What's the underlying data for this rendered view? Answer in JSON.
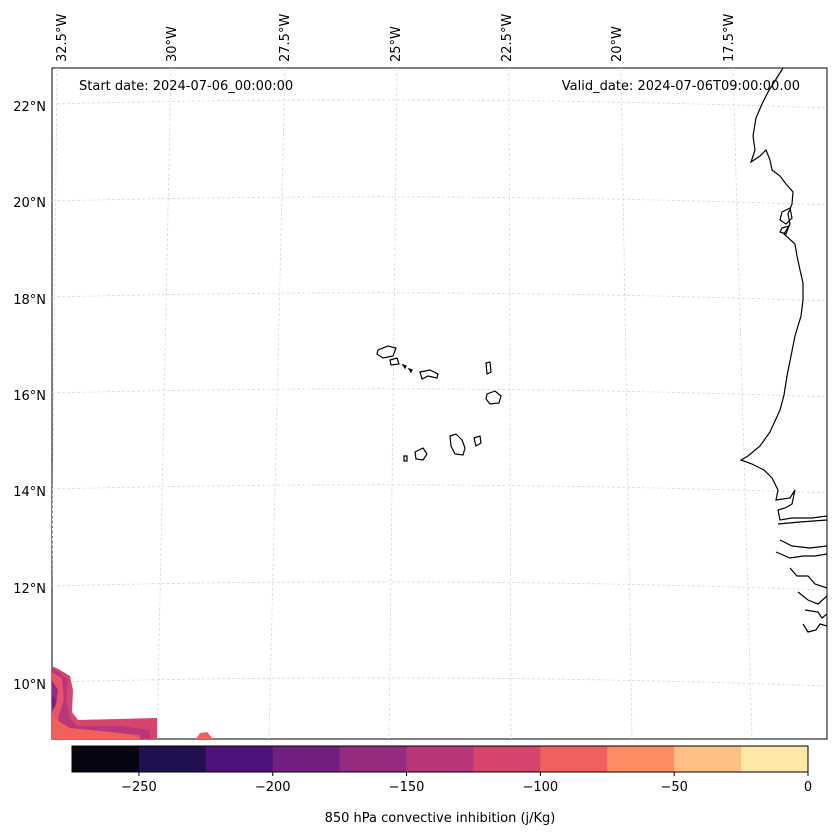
{
  "header": {
    "start_date": "Start date: 2024-07-06_00:00:00",
    "valid_date": "Valid_date: 2024-07-06T09:00:00.00"
  },
  "axes": {
    "lon_labels": [
      "32.5°W",
      "30°W",
      "27.5°W",
      "25°W",
      "22.5°W",
      "20°W",
      "17.5°W"
    ],
    "lat_labels": [
      "22°N",
      "20°N",
      "18°N",
      "16°N",
      "14°N",
      "12°N",
      "10°N"
    ]
  },
  "colorbar": {
    "label": "850 hPa convective inhibition (j/Kg)",
    "tick_labels": [
      "−250",
      "−200",
      "−150",
      "−100",
      "−50",
      "0"
    ],
    "colors": [
      "#040412",
      "#221150",
      "#4f127b",
      "#721f81",
      "#962c80",
      "#b73779",
      "#d8456c",
      "#f1605d",
      "#fd8d60",
      "#febf84",
      "#fde9a5"
    ],
    "levels": [
      -275,
      -250,
      -225,
      -200,
      -175,
      -150,
      -125,
      -100,
      -75,
      -50,
      -25,
      0
    ]
  }
}
